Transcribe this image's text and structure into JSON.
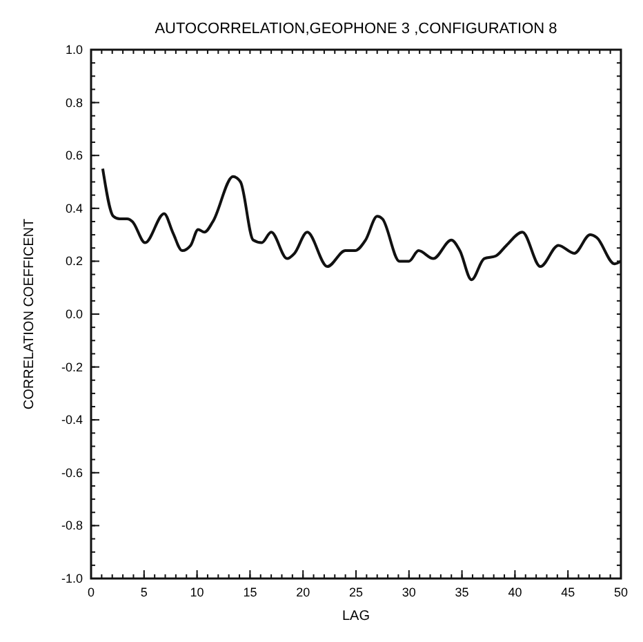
{
  "chart_data": {
    "type": "line",
    "title": "AUTOCORRELATION,GEOPHONE 3 ,CONFIGURATION 8",
    "xlabel": "LAG",
    "ylabel": "CORRELATION COEFFICENT",
    "x": [
      1.1,
      2.1,
      2.7,
      3.4,
      3.9,
      5.1,
      6.9,
      7.7,
      8.6,
      9.4,
      10.1,
      10.7,
      11.5,
      13.4,
      14.1,
      15.3,
      16.1,
      17,
      18.5,
      19.2,
      20.4,
      22.3,
      24,
      24.9,
      25.9,
      27,
      27.5,
      29.1,
      30,
      30.9,
      32.3,
      34,
      34.8,
      35.9,
      37.1,
      38.2,
      39.2,
      40.7,
      42.4,
      44.1,
      45.6,
      47.1,
      47.7,
      49.4,
      50
    ],
    "series": [
      {
        "color": "#111111",
        "values": [
          0.55,
          0.37,
          0.36,
          0.36,
          0.35,
          0.27,
          0.38,
          0.31,
          0.24,
          0.26,
          0.32,
          0.31,
          0.35,
          0.52,
          0.5,
          0.28,
          0.27,
          0.31,
          0.21,
          0.23,
          0.31,
          0.18,
          0.24,
          0.24,
          0.28,
          0.37,
          0.36,
          0.2,
          0.2,
          0.24,
          0.21,
          0.28,
          0.24,
          0.13,
          0.21,
          0.22,
          0.26,
          0.31,
          0.18,
          0.26,
          0.23,
          0.3,
          0.29,
          0.19,
          0.2
        ]
      }
    ],
    "xlim": [
      0,
      50
    ],
    "xticks": [
      0,
      5,
      10,
      15,
      20,
      25,
      30,
      35,
      40,
      45,
      50
    ],
    "ylim": [
      -1,
      1
    ],
    "yticks": [
      {
        "value": -1,
        "label": "-1.0"
      },
      -0.8,
      -0.6,
      -0.4,
      -0.2,
      {
        "value": 0,
        "label": "0.0"
      },
      0.2,
      0.4,
      0.6,
      0.8,
      {
        "value": 1,
        "label": "1.0"
      }
    ],
    "grid": false,
    "marker": "none",
    "line_style": "solid"
  }
}
